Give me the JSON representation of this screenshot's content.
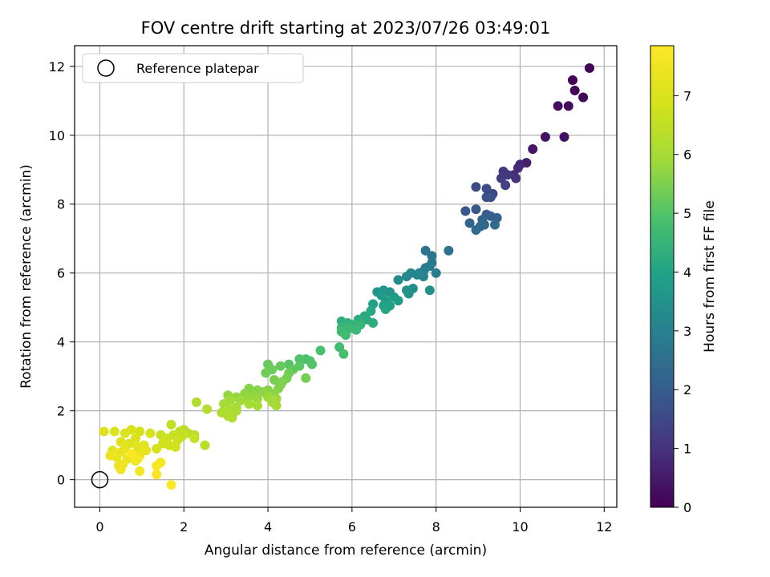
{
  "chart_data": {
    "type": "scatter",
    "title": "FOV centre drift starting at 2023/07/26 03:49:01",
    "xlabel": "Angular distance from reference (arcmin)",
    "ylabel": "Rotation from reference (arcmin)",
    "xlim": [
      -0.6,
      12.3
    ],
    "ylim": [
      -0.8,
      12.6
    ],
    "xticks": [
      0,
      2,
      4,
      6,
      8,
      10,
      12
    ],
    "yticks": [
      0,
      2,
      4,
      6,
      8,
      10,
      12
    ],
    "grid": true,
    "legend": {
      "position": "top-left",
      "entries": [
        "Reference platepar"
      ]
    },
    "reference_point": {
      "x": 0,
      "y": 0,
      "marker": "open-circle"
    },
    "colorbar": {
      "label": "Hours from first FF file",
      "colormap": "viridis",
      "range": [
        0,
        7.85
      ],
      "ticks": [
        0,
        1,
        2,
        3,
        4,
        5,
        6,
        7
      ]
    },
    "points": [
      {
        "x": 11.65,
        "y": 11.95,
        "c": 0.0
      },
      {
        "x": 11.25,
        "y": 11.6,
        "c": 0.05
      },
      {
        "x": 11.3,
        "y": 11.3,
        "c": 0.1
      },
      {
        "x": 11.5,
        "y": 11.1,
        "c": 0.15
      },
      {
        "x": 11.15,
        "y": 10.85,
        "c": 0.2
      },
      {
        "x": 10.9,
        "y": 10.85,
        "c": 0.25
      },
      {
        "x": 11.05,
        "y": 9.95,
        "c": 0.3
      },
      {
        "x": 10.6,
        "y": 9.95,
        "c": 0.35
      },
      {
        "x": 10.3,
        "y": 9.6,
        "c": 0.45
      },
      {
        "x": 10.15,
        "y": 9.2,
        "c": 0.6
      },
      {
        "x": 10.0,
        "y": 9.15,
        "c": 0.7
      },
      {
        "x": 9.95,
        "y": 9.05,
        "c": 0.85
      },
      {
        "x": 9.85,
        "y": 8.85,
        "c": 0.9
      },
      {
        "x": 9.9,
        "y": 8.75,
        "c": 1.0
      },
      {
        "x": 9.6,
        "y": 8.95,
        "c": 1.1
      },
      {
        "x": 9.7,
        "y": 8.85,
        "c": 1.15
      },
      {
        "x": 9.55,
        "y": 8.75,
        "c": 1.2
      },
      {
        "x": 9.65,
        "y": 8.55,
        "c": 1.3
      },
      {
        "x": 9.35,
        "y": 8.3,
        "c": 1.45
      },
      {
        "x": 9.2,
        "y": 8.45,
        "c": 1.55
      },
      {
        "x": 8.95,
        "y": 8.5,
        "c": 1.6
      },
      {
        "x": 9.2,
        "y": 8.2,
        "c": 1.7
      },
      {
        "x": 9.3,
        "y": 8.2,
        "c": 1.75
      },
      {
        "x": 8.7,
        "y": 7.8,
        "c": 1.85
      },
      {
        "x": 8.95,
        "y": 7.85,
        "c": 1.9
      },
      {
        "x": 9.2,
        "y": 7.7,
        "c": 2.0
      },
      {
        "x": 9.3,
        "y": 7.65,
        "c": 2.05
      },
      {
        "x": 9.45,
        "y": 7.6,
        "c": 2.1
      },
      {
        "x": 9.1,
        "y": 7.55,
        "c": 2.15
      },
      {
        "x": 8.8,
        "y": 7.45,
        "c": 2.2
      },
      {
        "x": 9.15,
        "y": 7.4,
        "c": 2.25
      },
      {
        "x": 9.05,
        "y": 7.35,
        "c": 2.3
      },
      {
        "x": 9.4,
        "y": 7.4,
        "c": 2.35
      },
      {
        "x": 8.95,
        "y": 7.25,
        "c": 2.4
      },
      {
        "x": 8.3,
        "y": 6.65,
        "c": 2.55
      },
      {
        "x": 7.75,
        "y": 6.65,
        "c": 2.6
      },
      {
        "x": 7.9,
        "y": 6.5,
        "c": 2.7
      },
      {
        "x": 7.9,
        "y": 6.3,
        "c": 2.75
      },
      {
        "x": 7.75,
        "y": 6.15,
        "c": 2.8
      },
      {
        "x": 7.85,
        "y": 6.2,
        "c": 2.85
      },
      {
        "x": 8.0,
        "y": 6.0,
        "c": 2.9
      },
      {
        "x": 7.7,
        "y": 6.05,
        "c": 2.95
      },
      {
        "x": 7.6,
        "y": 6.0,
        "c": 3.0
      },
      {
        "x": 7.7,
        "y": 5.9,
        "c": 3.05
      },
      {
        "x": 7.4,
        "y": 6.0,
        "c": 3.1
      },
      {
        "x": 7.55,
        "y": 5.95,
        "c": 3.15
      },
      {
        "x": 7.3,
        "y": 5.9,
        "c": 3.2
      },
      {
        "x": 7.1,
        "y": 5.8,
        "c": 3.3
      },
      {
        "x": 7.45,
        "y": 5.55,
        "c": 3.35
      },
      {
        "x": 7.85,
        "y": 5.5,
        "c": 3.4
      },
      {
        "x": 7.3,
        "y": 5.5,
        "c": 3.45
      },
      {
        "x": 7.35,
        "y": 5.4,
        "c": 3.5
      },
      {
        "x": 6.9,
        "y": 5.45,
        "c": 3.55
      },
      {
        "x": 6.75,
        "y": 5.5,
        "c": 3.6
      },
      {
        "x": 6.6,
        "y": 5.45,
        "c": 3.65
      },
      {
        "x": 6.7,
        "y": 5.35,
        "c": 3.7
      },
      {
        "x": 7.0,
        "y": 5.3,
        "c": 3.75
      },
      {
        "x": 6.8,
        "y": 5.2,
        "c": 3.8
      },
      {
        "x": 7.1,
        "y": 5.2,
        "c": 3.85
      },
      {
        "x": 6.5,
        "y": 5.1,
        "c": 3.9
      },
      {
        "x": 6.75,
        "y": 5.05,
        "c": 3.95
      },
      {
        "x": 6.9,
        "y": 5.05,
        "c": 4.0
      },
      {
        "x": 6.8,
        "y": 4.95,
        "c": 4.05
      },
      {
        "x": 6.45,
        "y": 4.9,
        "c": 4.1
      },
      {
        "x": 6.3,
        "y": 4.75,
        "c": 4.15
      },
      {
        "x": 6.35,
        "y": 4.65,
        "c": 4.2
      },
      {
        "x": 6.5,
        "y": 4.55,
        "c": 4.25
      },
      {
        "x": 6.15,
        "y": 4.65,
        "c": 4.3
      },
      {
        "x": 5.75,
        "y": 4.6,
        "c": 4.35
      },
      {
        "x": 5.9,
        "y": 4.55,
        "c": 4.4
      },
      {
        "x": 6.05,
        "y": 4.5,
        "c": 4.45
      },
      {
        "x": 6.2,
        "y": 4.5,
        "c": 4.5
      },
      {
        "x": 5.75,
        "y": 4.4,
        "c": 4.55
      },
      {
        "x": 5.95,
        "y": 4.4,
        "c": 4.6
      },
      {
        "x": 6.1,
        "y": 4.35,
        "c": 4.6
      },
      {
        "x": 5.75,
        "y": 4.3,
        "c": 4.65
      },
      {
        "x": 5.85,
        "y": 4.2,
        "c": 4.7
      },
      {
        "x": 5.7,
        "y": 3.85,
        "c": 4.75
      },
      {
        "x": 5.8,
        "y": 3.65,
        "c": 4.8
      },
      {
        "x": 5.25,
        "y": 3.75,
        "c": 4.85
      },
      {
        "x": 4.9,
        "y": 3.5,
        "c": 4.9
      },
      {
        "x": 5.0,
        "y": 3.45,
        "c": 4.95
      },
      {
        "x": 5.05,
        "y": 3.35,
        "c": 5.0
      },
      {
        "x": 4.75,
        "y": 3.5,
        "c": 5.0
      },
      {
        "x": 4.5,
        "y": 3.35,
        "c": 5.05
      },
      {
        "x": 4.75,
        "y": 3.3,
        "c": 5.1
      },
      {
        "x": 4.6,
        "y": 3.2,
        "c": 5.15
      },
      {
        "x": 4.3,
        "y": 3.3,
        "c": 5.2
      },
      {
        "x": 4.0,
        "y": 3.35,
        "c": 5.25
      },
      {
        "x": 4.1,
        "y": 3.2,
        "c": 5.3
      },
      {
        "x": 3.95,
        "y": 3.1,
        "c": 5.35
      },
      {
        "x": 4.5,
        "y": 3.1,
        "c": 5.35
      },
      {
        "x": 4.45,
        "y": 2.95,
        "c": 5.4
      },
      {
        "x": 4.9,
        "y": 2.95,
        "c": 5.4
      },
      {
        "x": 4.15,
        "y": 2.9,
        "c": 5.45
      },
      {
        "x": 4.35,
        "y": 2.85,
        "c": 5.5
      },
      {
        "x": 4.3,
        "y": 2.75,
        "c": 5.5
      },
      {
        "x": 4.25,
        "y": 2.65,
        "c": 5.55
      },
      {
        "x": 4.0,
        "y": 2.6,
        "c": 5.55
      },
      {
        "x": 3.55,
        "y": 2.65,
        "c": 5.6
      },
      {
        "x": 3.75,
        "y": 2.6,
        "c": 5.6
      },
      {
        "x": 3.9,
        "y": 2.55,
        "c": 5.65
      },
      {
        "x": 4.15,
        "y": 2.5,
        "c": 5.65
      },
      {
        "x": 3.45,
        "y": 2.5,
        "c": 5.7
      },
      {
        "x": 3.65,
        "y": 2.45,
        "c": 5.7
      },
      {
        "x": 3.05,
        "y": 2.45,
        "c": 5.75
      },
      {
        "x": 3.25,
        "y": 2.4,
        "c": 5.75
      },
      {
        "x": 3.5,
        "y": 2.35,
        "c": 5.8
      },
      {
        "x": 3.75,
        "y": 2.35,
        "c": 5.8
      },
      {
        "x": 4.0,
        "y": 2.4,
        "c": 5.85
      },
      {
        "x": 4.2,
        "y": 2.35,
        "c": 5.85
      },
      {
        "x": 3.1,
        "y": 2.3,
        "c": 5.9
      },
      {
        "x": 3.35,
        "y": 2.3,
        "c": 5.9
      },
      {
        "x": 4.1,
        "y": 2.25,
        "c": 5.95
      },
      {
        "x": 2.95,
        "y": 2.2,
        "c": 5.95
      },
      {
        "x": 3.55,
        "y": 2.2,
        "c": 6.0
      },
      {
        "x": 3.75,
        "y": 2.15,
        "c": 6.0
      },
      {
        "x": 4.2,
        "y": 2.15,
        "c": 6.05
      },
      {
        "x": 3.25,
        "y": 2.1,
        "c": 6.05
      },
      {
        "x": 3.05,
        "y": 2.05,
        "c": 6.1
      },
      {
        "x": 3.25,
        "y": 2.0,
        "c": 6.1
      },
      {
        "x": 2.9,
        "y": 1.95,
        "c": 6.15
      },
      {
        "x": 3.05,
        "y": 1.85,
        "c": 6.15
      },
      {
        "x": 3.15,
        "y": 1.8,
        "c": 6.2
      },
      {
        "x": 2.3,
        "y": 2.25,
        "c": 6.2
      },
      {
        "x": 2.55,
        "y": 2.05,
        "c": 6.25
      },
      {
        "x": 2.25,
        "y": 1.3,
        "c": 6.3
      },
      {
        "x": 2.5,
        "y": 1.0,
        "c": 6.35
      },
      {
        "x": 2.0,
        "y": 1.45,
        "c": 6.4
      },
      {
        "x": 2.1,
        "y": 1.35,
        "c": 6.45
      },
      {
        "x": 1.9,
        "y": 1.4,
        "c": 6.5
      },
      {
        "x": 1.7,
        "y": 1.6,
        "c": 6.5
      },
      {
        "x": 1.95,
        "y": 1.25,
        "c": 6.55
      },
      {
        "x": 1.75,
        "y": 1.3,
        "c": 6.6
      },
      {
        "x": 2.25,
        "y": 1.2,
        "c": 6.6
      },
      {
        "x": 1.45,
        "y": 1.3,
        "c": 6.65
      },
      {
        "x": 1.6,
        "y": 1.2,
        "c": 6.7
      },
      {
        "x": 1.85,
        "y": 1.15,
        "c": 6.7
      },
      {
        "x": 1.5,
        "y": 1.05,
        "c": 6.75
      },
      {
        "x": 1.65,
        "y": 1.0,
        "c": 6.8
      },
      {
        "x": 1.35,
        "y": 0.9,
        "c": 6.85
      },
      {
        "x": 1.8,
        "y": 0.95,
        "c": 6.85
      },
      {
        "x": 1.2,
        "y": 1.35,
        "c": 6.9
      },
      {
        "x": 0.95,
        "y": 1.4,
        "c": 6.9
      },
      {
        "x": 0.75,
        "y": 1.45,
        "c": 6.95
      },
      {
        "x": 0.6,
        "y": 1.35,
        "c": 7.0
      },
      {
        "x": 0.35,
        "y": 1.4,
        "c": 7.0
      },
      {
        "x": 0.1,
        "y": 1.4,
        "c": 7.05
      },
      {
        "x": 0.85,
        "y": 1.2,
        "c": 7.05
      },
      {
        "x": 0.5,
        "y": 1.1,
        "c": 7.1
      },
      {
        "x": 0.7,
        "y": 1.05,
        "c": 7.1
      },
      {
        "x": 1.05,
        "y": 1.0,
        "c": 7.15
      },
      {
        "x": 0.9,
        "y": 0.95,
        "c": 7.2
      },
      {
        "x": 0.6,
        "y": 0.9,
        "c": 7.2
      },
      {
        "x": 0.3,
        "y": 0.85,
        "c": 7.25
      },
      {
        "x": 1.1,
        "y": 0.85,
        "c": 7.25
      },
      {
        "x": 0.5,
        "y": 0.8,
        "c": 7.3
      },
      {
        "x": 0.8,
        "y": 0.75,
        "c": 7.3
      },
      {
        "x": 0.25,
        "y": 0.7,
        "c": 7.35
      },
      {
        "x": 0.95,
        "y": 0.7,
        "c": 7.35
      },
      {
        "x": 0.4,
        "y": 0.65,
        "c": 7.4
      },
      {
        "x": 0.65,
        "y": 0.6,
        "c": 7.4
      },
      {
        "x": 0.85,
        "y": 0.55,
        "c": 7.45
      },
      {
        "x": 0.45,
        "y": 0.4,
        "c": 7.45
      },
      {
        "x": 0.55,
        "y": 0.45,
        "c": 7.5
      },
      {
        "x": 0.5,
        "y": 0.3,
        "c": 7.55
      },
      {
        "x": 0.95,
        "y": 0.25,
        "c": 7.6
      },
      {
        "x": 1.45,
        "y": 0.5,
        "c": 7.65
      },
      {
        "x": 1.35,
        "y": 0.4,
        "c": 7.7
      },
      {
        "x": 0.9,
        "y": 0.6,
        "c": 7.7
      },
      {
        "x": 1.35,
        "y": 0.15,
        "c": 7.75
      },
      {
        "x": 1.7,
        "y": -0.15,
        "c": 7.8
      },
      {
        "x": 0.75,
        "y": 0.75,
        "c": 7.8
      }
    ]
  }
}
